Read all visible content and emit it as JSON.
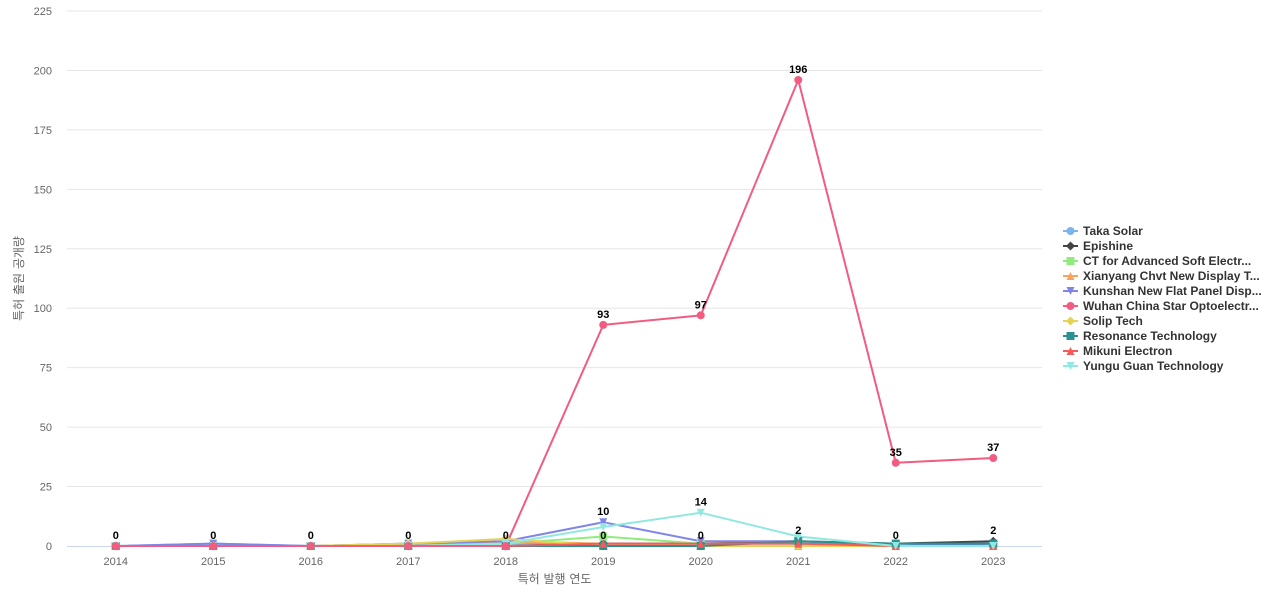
{
  "chart_data": {
    "type": "line",
    "title": "",
    "xlabel": "특허 발행 연도",
    "ylabel": "특허 출원 공개량",
    "ylim": [
      0,
      225
    ],
    "yticks": [
      0,
      25,
      50,
      75,
      100,
      125,
      150,
      175,
      200,
      225
    ],
    "grid": true,
    "legend_position": "right",
    "x": [
      "2014",
      "2015",
      "2016",
      "2017",
      "2018",
      "2019",
      "2020",
      "2021",
      "2022",
      "2023"
    ],
    "series": [
      {
        "name": "Taka Solar",
        "color": "#7cb5ec",
        "marker": "circle",
        "values": [
          0,
          1,
          0,
          1,
          1,
          1,
          1,
          1,
          0,
          1
        ]
      },
      {
        "name": "Epishine",
        "color": "#434348",
        "marker": "diamond",
        "values": [
          0,
          0,
          0,
          0,
          0,
          1,
          1,
          2,
          1,
          2
        ]
      },
      {
        "name": "CT for Advanced Soft Electr...",
        "color": "#90ed7d",
        "marker": "square",
        "values": [
          0,
          0,
          0,
          0,
          1,
          4,
          1,
          1,
          0,
          0
        ]
      },
      {
        "name": "Xianyang Chvt New Display T...",
        "color": "#f7a35c",
        "marker": "triangle",
        "values": [
          0,
          0,
          0,
          0,
          2,
          1,
          0,
          0,
          0,
          0
        ]
      },
      {
        "name": "Kunshan New Flat Panel Disp...",
        "color": "#8085e9",
        "marker": "triangle-down",
        "values": [
          0,
          1,
          0,
          1,
          2,
          10,
          2,
          2,
          0,
          1
        ]
      },
      {
        "name": "Wuhan China Star Optoelectr...",
        "color": "#f15c80",
        "marker": "circle",
        "values": [
          0,
          0,
          0,
          0,
          0,
          93,
          97,
          196,
          35,
          37
        ]
      },
      {
        "name": "Solip Tech",
        "color": "#e4d354",
        "marker": "diamond",
        "values": [
          0,
          0,
          0,
          1,
          3,
          0,
          0,
          0,
          0,
          0
        ]
      },
      {
        "name": "Resonance Technology",
        "color": "#2b908f",
        "marker": "square",
        "values": [
          0,
          0,
          0,
          0,
          0,
          0,
          0,
          2,
          1,
          1
        ]
      },
      {
        "name": "Mikuni Electron",
        "color": "#f45b5b",
        "marker": "triangle",
        "values": [
          0,
          0,
          0,
          0,
          0,
          1,
          1,
          1,
          0,
          0
        ]
      },
      {
        "name": "Yungu Guan Technology",
        "color": "#91e8e1",
        "marker": "triangle-down",
        "values": [
          0,
          0,
          0,
          0,
          1,
          8,
          14,
          4,
          0,
          0
        ]
      }
    ],
    "data_labels": [
      {
        "x": "2014",
        "text": "0"
      },
      {
        "x": "2015",
        "text": "0"
      },
      {
        "x": "2016",
        "text": "0"
      },
      {
        "x": "2017",
        "text": "0"
      },
      {
        "x": "2018",
        "text": "0"
      },
      {
        "x": "2019",
        "text": "93",
        "series": "Wuhan China Star Optoelectr..."
      },
      {
        "x": "2019",
        "text": "10",
        "series": "Kunshan New Flat Panel Disp..."
      },
      {
        "x": "2019",
        "text": "0"
      },
      {
        "x": "2020",
        "text": "97",
        "series": "Wuhan China Star Optoelectr..."
      },
      {
        "x": "2020",
        "text": "14",
        "series": "Yungu Guan Technology"
      },
      {
        "x": "2020",
        "text": "0"
      },
      {
        "x": "2021",
        "text": "196",
        "series": "Wuhan China Star Optoelectr..."
      },
      {
        "x": "2021",
        "text": "2"
      },
      {
        "x": "2022",
        "text": "35",
        "series": "Wuhan China Star Optoelectr..."
      },
      {
        "x": "2022",
        "text": "0"
      },
      {
        "x": "2023",
        "text": "37",
        "series": "Wuhan China Star Optoelectr..."
      },
      {
        "x": "2023",
        "text": "2"
      }
    ]
  }
}
